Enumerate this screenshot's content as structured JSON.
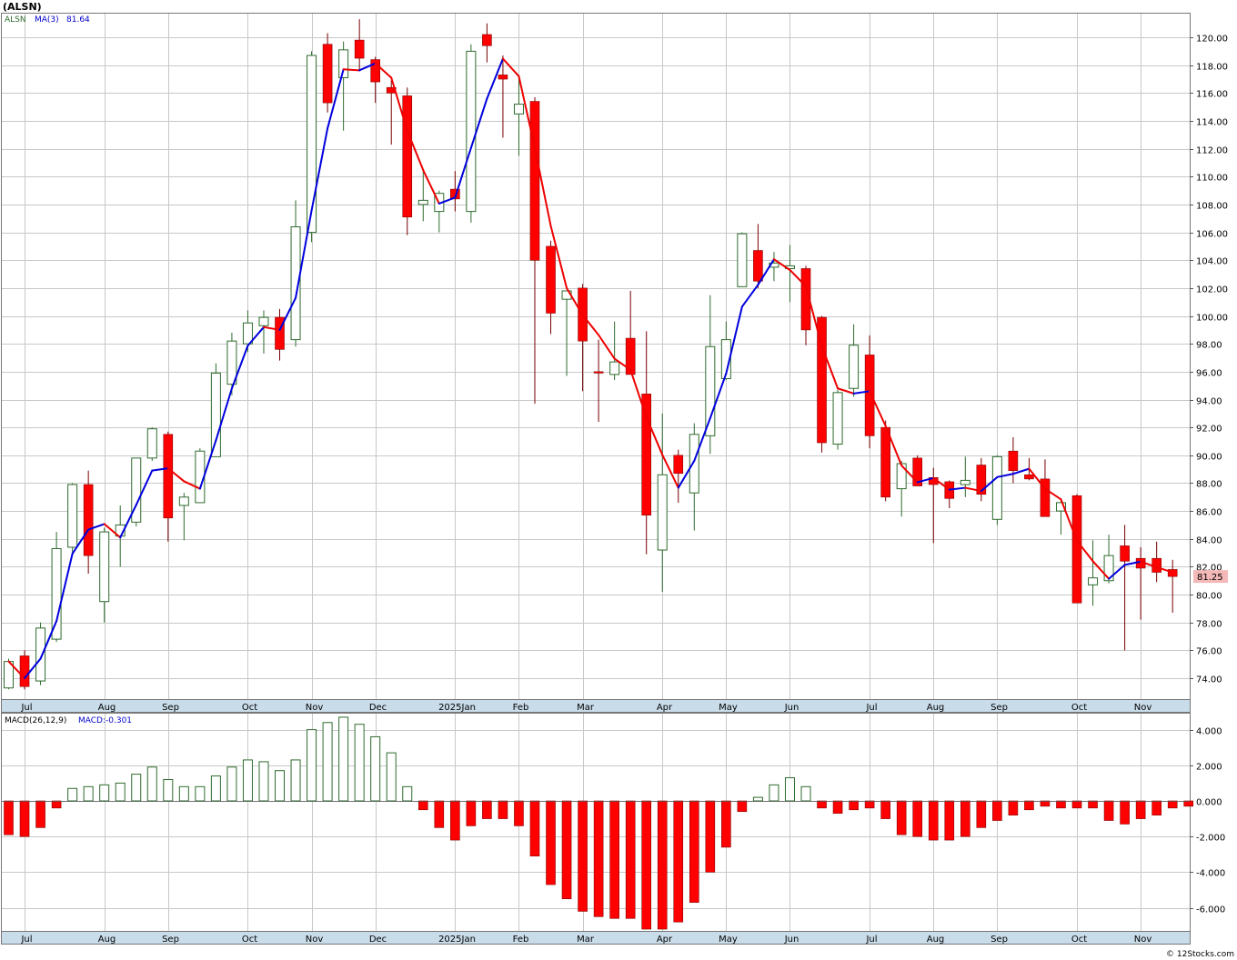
{
  "header": {
    "ticker_label": "(ALSN)"
  },
  "footer": {
    "watermark": "© 12Stocks.com"
  },
  "colors": {
    "up": "#2e6b2e",
    "down": "#ff0000",
    "ma_up": "#0000dd",
    "ma_down": "#ee0000",
    "grid": "#c8c8c8",
    "axis_band": "#c9dcea",
    "last_label_bg": "#f4b8b8"
  },
  "chart_data": [
    {
      "type": "candlestick",
      "legend": {
        "symbol": "ALSN",
        "ma_label": "MA(3)",
        "ma_value": "81.64"
      },
      "last_price_label": "81.25",
      "ylim": [
        72.5,
        121.7
      ],
      "yticks": [
        "74.00",
        "76.00",
        "78.00",
        "80.00",
        "82.00",
        "84.00",
        "86.00",
        "88.00",
        "90.00",
        "92.00",
        "94.00",
        "96.00",
        "98.00",
        "100.00",
        "102.00",
        "104.00",
        "106.00",
        "108.00",
        "110.00",
        "112.00",
        "114.00",
        "116.00",
        "118.00",
        "120.00"
      ],
      "months": [
        {
          "label": "Jul",
          "i": 1
        },
        {
          "label": "Aug",
          "i": 6
        },
        {
          "label": "Sep",
          "i": 10
        },
        {
          "label": "Oct",
          "i": 15
        },
        {
          "label": "Nov",
          "i": 19
        },
        {
          "label": "Dec",
          "i": 23
        },
        {
          "label": "2025Jan",
          "i": 28
        },
        {
          "label": "Feb",
          "i": 32
        },
        {
          "label": "Mar",
          "i": 36
        },
        {
          "label": "Apr",
          "i": 41
        },
        {
          "label": "May",
          "i": 45
        },
        {
          "label": "Jun",
          "i": 49
        },
        {
          "label": "Jul",
          "i": 54
        },
        {
          "label": "Aug",
          "i": 58
        },
        {
          "label": "Sep",
          "i": 62
        },
        {
          "label": "Oct",
          "i": 67
        },
        {
          "label": "Nov",
          "i": 71
        }
      ],
      "candles": [
        {
          "o": 73.3,
          "h": 75.4,
          "l": 73.2,
          "c": 75.2
        },
        {
          "o": 75.6,
          "h": 76.0,
          "l": 73.2,
          "c": 73.4
        },
        {
          "o": 73.8,
          "h": 78.0,
          "l": 73.5,
          "c": 77.6
        },
        {
          "o": 76.8,
          "h": 84.5,
          "l": 76.6,
          "c": 83.3
        },
        {
          "o": 83.4,
          "h": 88.0,
          "l": 83.0,
          "c": 87.9
        },
        {
          "o": 87.9,
          "h": 88.9,
          "l": 81.5,
          "c": 82.8
        },
        {
          "o": 79.5,
          "h": 84.8,
          "l": 78.0,
          "c": 84.5
        },
        {
          "o": 84.2,
          "h": 86.4,
          "l": 82.0,
          "c": 85.0
        },
        {
          "o": 85.2,
          "h": 89.8,
          "l": 84.9,
          "c": 89.8
        },
        {
          "o": 89.8,
          "h": 92.0,
          "l": 89.6,
          "c": 91.9
        },
        {
          "o": 91.5,
          "h": 91.7,
          "l": 83.8,
          "c": 85.5
        },
        {
          "o": 86.4,
          "h": 87.3,
          "l": 83.9,
          "c": 87.0
        },
        {
          "o": 86.6,
          "h": 90.5,
          "l": 86.6,
          "c": 90.3
        },
        {
          "o": 89.9,
          "h": 96.6,
          "l": 89.9,
          "c": 95.9
        },
        {
          "o": 95.1,
          "h": 98.8,
          "l": 94.3,
          "c": 98.2
        },
        {
          "o": 98.0,
          "h": 100.4,
          "l": 97.4,
          "c": 99.5
        },
        {
          "o": 99.3,
          "h": 100.4,
          "l": 97.3,
          "c": 99.9
        },
        {
          "o": 99.9,
          "h": 100.5,
          "l": 96.8,
          "c": 97.6
        },
        {
          "o": 98.3,
          "h": 108.3,
          "l": 97.8,
          "c": 106.4
        },
        {
          "o": 106.0,
          "h": 119.0,
          "l": 105.3,
          "c": 118.7
        },
        {
          "o": 119.5,
          "h": 120.3,
          "l": 114.6,
          "c": 115.3
        },
        {
          "o": 117.1,
          "h": 119.7,
          "l": 113.3,
          "c": 119.1
        },
        {
          "o": 119.8,
          "h": 121.3,
          "l": 117.6,
          "c": 118.5
        },
        {
          "o": 118.4,
          "h": 118.6,
          "l": 115.3,
          "c": 116.8
        },
        {
          "o": 116.4,
          "h": 116.9,
          "l": 112.3,
          "c": 116.0
        },
        {
          "o": 115.8,
          "h": 116.4,
          "l": 105.8,
          "c": 107.1
        },
        {
          "o": 108.0,
          "h": 110.4,
          "l": 106.8,
          "c": 108.3
        },
        {
          "o": 107.5,
          "h": 109.0,
          "l": 106.0,
          "c": 108.8
        },
        {
          "o": 109.1,
          "h": 110.4,
          "l": 107.5,
          "c": 108.4
        },
        {
          "o": 107.5,
          "h": 119.5,
          "l": 106.7,
          "c": 119.0
        },
        {
          "o": 120.2,
          "h": 121.0,
          "l": 118.2,
          "c": 119.4
        },
        {
          "o": 117.3,
          "h": 118.7,
          "l": 112.8,
          "c": 117.0
        },
        {
          "o": 114.5,
          "h": 117.3,
          "l": 111.5,
          "c": 115.2
        },
        {
          "o": 115.4,
          "h": 115.7,
          "l": 93.7,
          "c": 104.0
        },
        {
          "o": 105.0,
          "h": 105.4,
          "l": 98.7,
          "c": 100.2
        },
        {
          "o": 101.2,
          "h": 101.6,
          "l": 95.7,
          "c": 101.8
        },
        {
          "o": 102.0,
          "h": 102.3,
          "l": 94.6,
          "c": 98.2
        },
        {
          "o": 96.0,
          "h": 98.3,
          "l": 92.4,
          "c": 95.9
        },
        {
          "o": 95.8,
          "h": 99.6,
          "l": 95.4,
          "c": 96.7
        },
        {
          "o": 98.4,
          "h": 101.8,
          "l": 96.2,
          "c": 95.8
        },
        {
          "o": 94.4,
          "h": 98.9,
          "l": 82.9,
          "c": 85.7
        },
        {
          "o": 83.2,
          "h": 93.0,
          "l": 80.2,
          "c": 88.6
        },
        {
          "o": 90.0,
          "h": 90.4,
          "l": 86.6,
          "c": 88.7
        },
        {
          "o": 87.3,
          "h": 92.3,
          "l": 84.6,
          "c": 91.5
        },
        {
          "o": 91.4,
          "h": 101.5,
          "l": 90.1,
          "c": 97.8
        },
        {
          "o": 95.5,
          "h": 99.6,
          "l": 95.4,
          "c": 98.3
        },
        {
          "o": 102.1,
          "h": 106.0,
          "l": 102.1,
          "c": 105.9
        },
        {
          "o": 104.7,
          "h": 106.6,
          "l": 102.0,
          "c": 102.5
        },
        {
          "o": 103.5,
          "h": 104.6,
          "l": 102.5,
          "c": 103.8
        },
        {
          "o": 103.4,
          "h": 105.1,
          "l": 101.0,
          "c": 103.6
        },
        {
          "o": 103.4,
          "h": 103.6,
          "l": 97.9,
          "c": 99.0
        },
        {
          "o": 99.9,
          "h": 100.0,
          "l": 90.2,
          "c": 90.9
        },
        {
          "o": 90.8,
          "h": 94.7,
          "l": 90.4,
          "c": 94.5
        },
        {
          "o": 94.8,
          "h": 99.4,
          "l": 94.2,
          "c": 97.9
        },
        {
          "o": 97.2,
          "h": 98.6,
          "l": 90.5,
          "c": 91.4
        },
        {
          "o": 92.0,
          "h": 92.5,
          "l": 86.7,
          "c": 87.0
        },
        {
          "o": 87.6,
          "h": 89.6,
          "l": 85.6,
          "c": 89.4
        },
        {
          "o": 89.8,
          "h": 90.0,
          "l": 87.9,
          "c": 87.8
        },
        {
          "o": 88.4,
          "h": 89.1,
          "l": 83.7,
          "c": 87.9
        },
        {
          "o": 88.1,
          "h": 88.2,
          "l": 86.2,
          "c": 86.9
        },
        {
          "o": 87.9,
          "h": 89.9,
          "l": 87.0,
          "c": 88.2
        },
        {
          "o": 89.3,
          "h": 89.8,
          "l": 86.7,
          "c": 87.2
        },
        {
          "o": 85.4,
          "h": 90.0,
          "l": 85.0,
          "c": 89.9
        },
        {
          "o": 90.3,
          "h": 91.3,
          "l": 88.0,
          "c": 88.9
        },
        {
          "o": 88.6,
          "h": 89.8,
          "l": 88.2,
          "c": 88.3
        },
        {
          "o": 88.3,
          "h": 89.7,
          "l": 85.7,
          "c": 85.6
        },
        {
          "o": 86.0,
          "h": 86.9,
          "l": 84.3,
          "c": 86.6
        },
        {
          "o": 87.1,
          "h": 87.2,
          "l": 79.5,
          "c": 79.4
        },
        {
          "o": 80.7,
          "h": 83.9,
          "l": 79.2,
          "c": 81.2
        },
        {
          "o": 81.0,
          "h": 84.3,
          "l": 80.8,
          "c": 82.8
        },
        {
          "o": 83.5,
          "h": 85.0,
          "l": 76.0,
          "c": 82.4
        },
        {
          "o": 82.6,
          "h": 83.4,
          "l": 78.2,
          "c": 81.9
        },
        {
          "o": 82.6,
          "h": 83.8,
          "l": 80.9,
          "c": 81.6
        },
        {
          "o": 81.8,
          "h": 82.5,
          "l": 78.7,
          "c": 81.3
        }
      ]
    },
    {
      "type": "bar",
      "legend": {
        "label": "MACD(26,12,9)",
        "value_label": "MACD:-0.301"
      },
      "ylim": [
        -7.3,
        4.9
      ],
      "yticks": [
        "4.000",
        "2.000",
        "0.000",
        "-2.000",
        "-4.000",
        "-6.000"
      ],
      "values": [
        -1.9,
        -2.0,
        -1.5,
        -0.4,
        0.7,
        0.8,
        0.9,
        1.0,
        1.5,
        1.9,
        1.2,
        0.8,
        0.8,
        1.4,
        1.9,
        2.3,
        2.2,
        1.7,
        2.3,
        4.0,
        4.4,
        4.7,
        4.3,
        3.6,
        2.7,
        0.8,
        -0.5,
        -1.5,
        -2.2,
        -1.4,
        -1.0,
        -1.0,
        -1.4,
        -3.1,
        -4.7,
        -5.5,
        -6.2,
        -6.5,
        -6.6,
        -6.6,
        -7.2,
        -7.2,
        -6.8,
        -5.7,
        -4.0,
        -2.6,
        -0.6,
        0.2,
        0.9,
        1.3,
        0.8,
        -0.4,
        -0.7,
        -0.5,
        -0.4,
        -1.0,
        -1.9,
        -2.0,
        -2.2,
        -2.2,
        -2.0,
        -1.5,
        -1.1,
        -0.8,
        -0.5,
        -0.3,
        -0.4,
        -0.4,
        -0.4,
        -1.1,
        -1.3,
        -1.0,
        -0.8,
        -0.4,
        -0.3
      ]
    }
  ]
}
